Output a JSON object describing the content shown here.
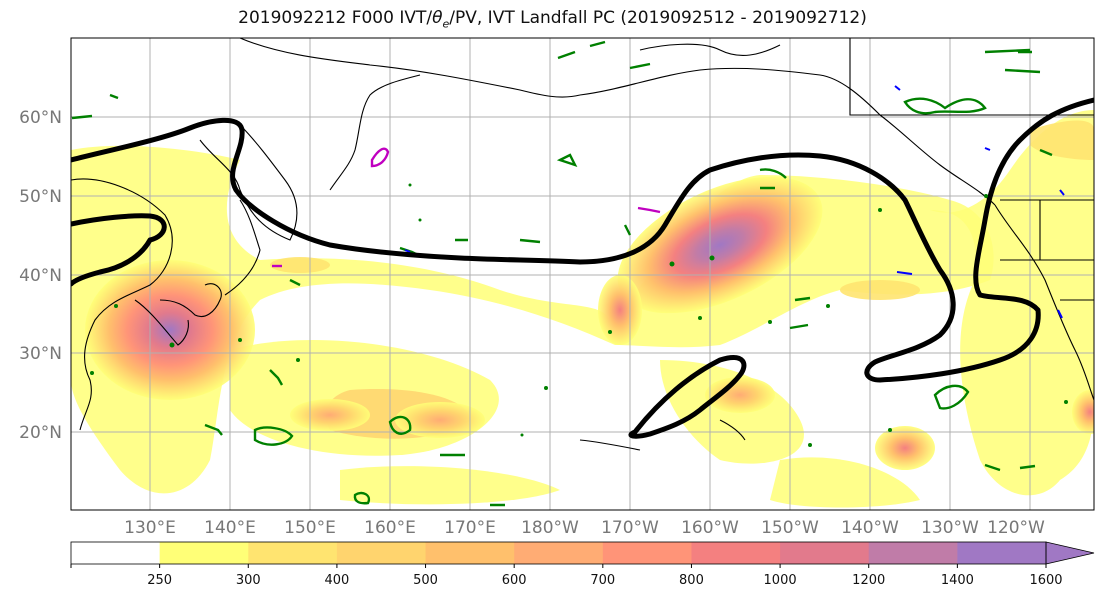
{
  "title": {
    "prefix": "2019092212 F000 IVT/",
    "theta": "θ",
    "theta_sub": "e",
    "suffix": "/PV, IVT Landfall PC (2019092512 - 2019092712)"
  },
  "map": {
    "lat_labels": [
      "60°N",
      "50°N",
      "40°N",
      "30°N",
      "20°N"
    ],
    "lon_labels": [
      "130°E",
      "140°E",
      "150°E",
      "160°E",
      "170°E",
      "180°W",
      "170°W",
      "160°W",
      "150°W",
      "140°W",
      "130°W",
      "120°W"
    ],
    "colors": {
      "coast": "#000000",
      "pc_contour": "#000000",
      "pv_green": "#008000",
      "pv_magenta": "#c000c0",
      "pv_blue": "#0000ff",
      "grid": "#b0b0b0"
    }
  },
  "colorbar": {
    "ticks": [
      "250",
      "300",
      "400",
      "500",
      "600",
      "700",
      "800",
      "1000",
      "1200",
      "1400",
      "1600"
    ],
    "colors": [
      "#ffffff",
      "#ffff77",
      "#ffe470",
      "#ffd46e",
      "#ffc06c",
      "#ffac74",
      "#ff9478",
      "#f48080",
      "#e27a8c",
      "#c07ca8",
      "#a078c4"
    ]
  }
}
